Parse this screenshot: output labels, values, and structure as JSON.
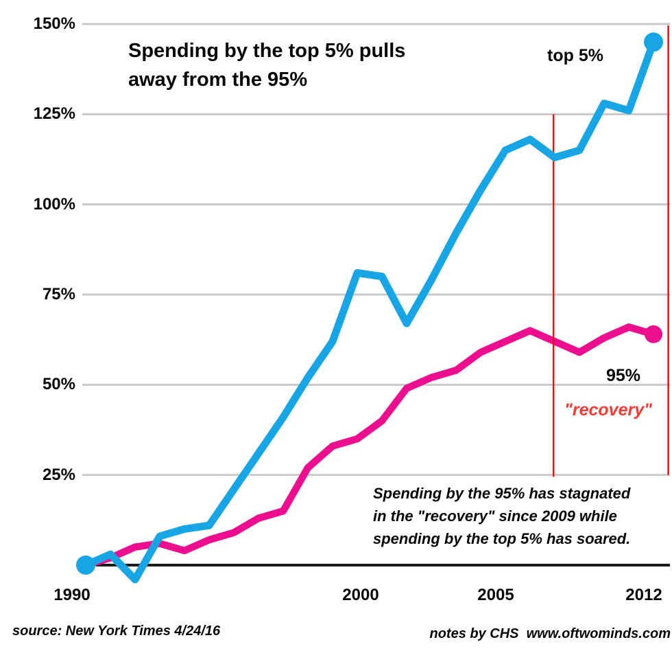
{
  "ui": {
    "title_line1": "Spending by the top 5% pulls",
    "title_line2": "away from the 95%",
    "y_ticks": [
      "150%",
      "125%",
      "100%",
      "75%",
      "50%",
      "25%"
    ],
    "x_ticks": [
      "1990",
      "2000",
      "2005",
      "2012"
    ],
    "recovery_label": "\"recovery\"",
    "note_line1": "Spending by the 95% has stagnated",
    "note_line2": "in the \"recovery\" since 2009 while",
    "note_line3": "spending by the top 5% has soared.",
    "source": "source: New York Times 4/24/16",
    "notes": "notes by CHS  www.oftwominds.com"
  },
  "colors": {
    "top5_blue": "#17a5e5",
    "p95_magenta": "#ed0e90",
    "vline_red": "#ee1111",
    "recovery_text_red": "#fb3b33",
    "gridline_gray": "#c9c9c9",
    "axis_black": "#1c1c1c",
    "text_black": "#060606",
    "background": "#ffffff"
  },
  "chart_data": {
    "type": "line",
    "title": "Spending by the top 5% pulls away from the 95%",
    "xlabel": "",
    "ylabel": "",
    "x": [
      1989,
      1990,
      1991,
      1992,
      1993,
      1994,
      1995,
      1996,
      1997,
      1998,
      1999,
      2000,
      2001,
      2002,
      2003,
      2004,
      2005,
      2006,
      2007,
      2008,
      2009,
      2010,
      2011,
      2012
    ],
    "series": [
      {
        "name": "top 5%",
        "color": "#17a5e5",
        "stroke_width": 11,
        "dot_radius": 14,
        "start_dot": true,
        "end_dot": true,
        "values": [
          0,
          3,
          -4,
          8,
          10,
          11,
          21,
          31,
          41,
          52,
          62,
          81,
          80,
          67,
          79,
          92,
          104,
          115,
          118,
          113,
          115,
          128,
          126,
          145
        ]
      },
      {
        "name": "95%",
        "color": "#ed0e90",
        "stroke_width": 10.5,
        "dot_radius": 13,
        "start_dot": false,
        "end_dot": true,
        "values": [
          0,
          2,
          5,
          6,
          4,
          7,
          9,
          13,
          15,
          27,
          33,
          35,
          40,
          49,
          52,
          54,
          59,
          62,
          65,
          62,
          59,
          63,
          66,
          64
        ]
      }
    ],
    "ylim": [
      -5,
      150
    ],
    "xlim": [
      1989,
      2012.6
    ],
    "grid": "horizontal-only",
    "y_gridlines_pct": [
      25,
      50,
      75,
      100,
      125,
      150
    ],
    "y_tick_labels": [
      "25%",
      "50%",
      "75%",
      "100%",
      "125%",
      "150%"
    ],
    "x_tick_labels": [
      "1990",
      "2000",
      "2005",
      "2012"
    ],
    "baseline_pct": 0,
    "legend_position": "inline-annotations",
    "vlines": [
      {
        "x": 2007.95,
        "from_pct": 24.5,
        "to_pct": 125,
        "color": "#ee1111"
      },
      {
        "x": 2012.6,
        "from_pct": 25,
        "to_pct": 149.6,
        "color": "#ee1111"
      }
    ],
    "annotations": [
      "top 5%",
      "95%",
      "\"recovery\"",
      "Spending by the 95% has stagnated in the \"recovery\" since 2009 while spending by the top 5% has soared."
    ]
  }
}
